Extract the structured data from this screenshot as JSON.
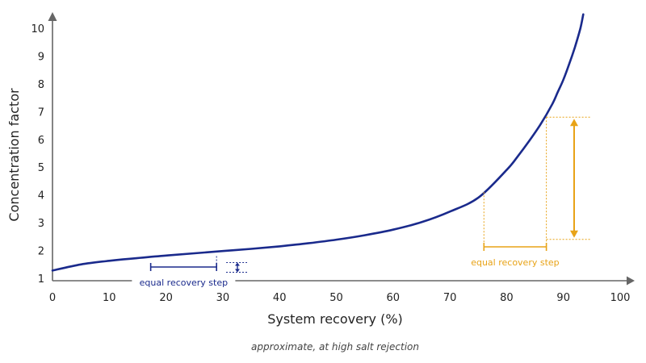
{
  "colors": {
    "axis": "#666666",
    "curve": "#1a2a8c",
    "annotation_blue": "#1a2a8c",
    "annotation_orange": "#e8a317",
    "text": "#222222"
  },
  "chart_data": {
    "type": "line",
    "title": "",
    "xlabel": "System recovery (%)",
    "ylabel": "Concentration factor",
    "xlim": [
      0,
      100
    ],
    "ylim": [
      1,
      10
    ],
    "x_ticks": [
      "0",
      "10",
      "20",
      "30",
      "40",
      "50",
      "60",
      "70",
      "80",
      "90",
      "100"
    ],
    "y_ticks": [
      "1",
      "2",
      "3",
      "4",
      "5",
      "6",
      "7",
      "8",
      "9",
      "10"
    ],
    "grid": false,
    "note": "approximate, at high salt rejection",
    "series": [
      {
        "x": [
          0,
          5,
          10,
          15,
          20,
          25,
          30,
          35,
          40,
          45,
          50,
          55,
          60,
          65,
          70,
          75,
          80,
          82,
          84,
          86,
          88,
          89,
          90,
          91,
          92,
          93,
          93.5
        ],
        "y": [
          1.28,
          1.5,
          1.63,
          1.73,
          1.82,
          1.9,
          1.98,
          2.06,
          2.15,
          2.26,
          2.39,
          2.55,
          2.75,
          3.02,
          3.4,
          3.9,
          4.9,
          5.4,
          5.95,
          6.55,
          7.25,
          7.7,
          8.15,
          8.7,
          9.3,
          10.0,
          10.5
        ]
      }
    ],
    "annotations": [
      {
        "label": "equal recovery step",
        "x_start": 17.3,
        "x_end": 28.9,
        "y_start": 1.66,
        "y_end": 1.8
      },
      {
        "label": "equal recovery step",
        "x_start": 76,
        "x_end": 87,
        "y_start": 2.4,
        "y_end": 6.8
      }
    ]
  }
}
